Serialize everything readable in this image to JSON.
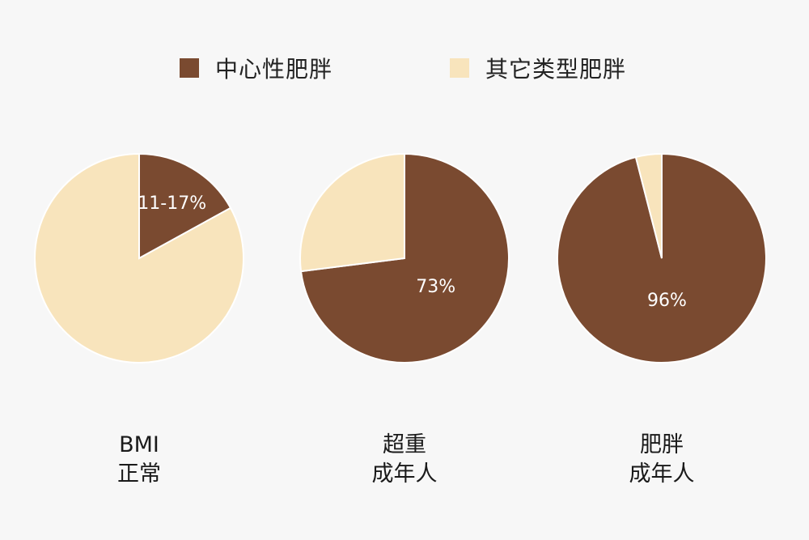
{
  "chart_data": [
    {
      "type": "pie",
      "categories": [
        "中心性肥胖",
        "其它类型肥胖"
      ],
      "values": [
        17,
        83
      ],
      "data_label": "11-17%",
      "group_label": [
        "BMI",
        "正常"
      ]
    },
    {
      "type": "pie",
      "categories": [
        "中心性肥胖",
        "其它类型肥胖"
      ],
      "values": [
        73,
        27
      ],
      "data_label": "73%",
      "group_label": [
        "超重",
        "成年人"
      ]
    },
    {
      "type": "pie",
      "categories": [
        "中心性肥胖",
        "其它类型肥胖"
      ],
      "values": [
        96,
        4
      ],
      "data_label": "96%",
      "group_label": [
        "肥胖",
        "成年人"
      ]
    }
  ],
  "legend": {
    "position": "top-center",
    "items": [
      {
        "label": "中心性肥胖",
        "color": "#7a4a30"
      },
      {
        "label": "其它类型肥胖",
        "color": "#f8e4bc"
      }
    ]
  },
  "colors": {
    "central": "#7a4a30",
    "other": "#f8e4bc",
    "background": "#f7f7f7"
  }
}
